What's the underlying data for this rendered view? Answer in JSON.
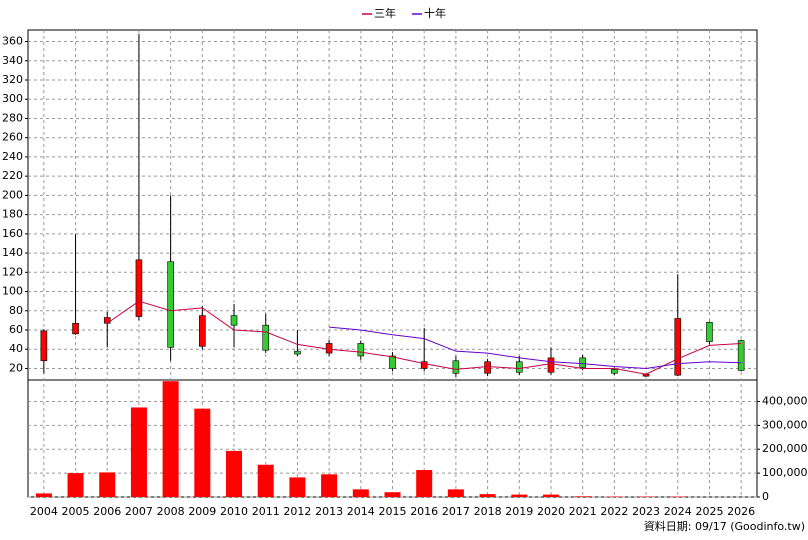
{
  "chart_data": {
    "type": "candlestick",
    "categories": [
      "2004",
      "2005",
      "2006",
      "2007",
      "2008",
      "2009",
      "2010",
      "2011",
      "2012",
      "2013",
      "2014",
      "2015",
      "2016",
      "2017",
      "2018",
      "2019",
      "2020",
      "2021",
      "2022",
      "2023",
      "2024",
      "2025",
      "2026"
    ],
    "open": [
      28,
      56,
      67,
      74,
      131,
      43,
      75,
      65,
      38,
      36,
      46,
      33,
      20,
      28,
      15,
      27,
      16,
      31,
      19,
      12,
      13,
      68,
      49
    ],
    "high": [
      61,
      160,
      79,
      368,
      200,
      85,
      87,
      77,
      60,
      50,
      49,
      37,
      62,
      33,
      30,
      33,
      42,
      34,
      21,
      14,
      118,
      69,
      50
    ],
    "low": [
      15,
      55,
      42,
      70,
      28,
      40,
      42,
      36,
      33,
      33,
      29,
      17,
      17,
      11,
      12,
      13,
      13,
      18,
      13,
      11,
      12,
      45,
      17
    ],
    "close": [
      59,
      67,
      73,
      133,
      42,
      75,
      65,
      39,
      35,
      46,
      33,
      20,
      27,
      15,
      27,
      16,
      31,
      21,
      15,
      14,
      72,
      48,
      18
    ],
    "up_color": "#ff0000",
    "down_color": "#33cc33",
    "series": [
      {
        "name": "三年",
        "color": "#cc0044",
        "values": [
          null,
          null,
          67,
          90,
          80,
          83,
          60,
          58,
          45,
          40,
          37,
          32,
          25,
          19,
          22,
          20,
          25,
          20,
          20,
          14,
          30,
          44,
          46
        ]
      },
      {
        "name": "十年",
        "color": "#6600cc",
        "values": [
          null,
          null,
          null,
          null,
          null,
          null,
          null,
          null,
          null,
          63,
          60,
          55,
          51,
          38,
          36,
          31,
          27,
          25,
          22,
          20,
          25,
          27,
          26
        ]
      }
    ],
    "ylim": [
      8,
      372
    ],
    "yticks": [
      20,
      40,
      60,
      80,
      100,
      120,
      140,
      160,
      180,
      200,
      220,
      240,
      260,
      280,
      300,
      320,
      340,
      360
    ],
    "volume": {
      "color": "#ff0000",
      "values": [
        15000,
        100000,
        103000,
        375000,
        485000,
        370000,
        193000,
        135000,
        82000,
        95000,
        32000,
        20000,
        113000,
        32000,
        12000,
        10000,
        10000,
        3000,
        2000,
        2000,
        2000,
        0,
        0
      ],
      "ylim": [
        0,
        490000
      ],
      "yticks": [
        0,
        {
          "value": 100000,
          "label": "100,000"
        },
        {
          "value": 200000,
          "label": "200,000"
        },
        {
          "value": 300000,
          "label": "300,000"
        },
        {
          "value": 400000,
          "label": "400,000"
        }
      ]
    },
    "grid": true,
    "footer": "資料日期: 09/17  (Goodinfo.tw)"
  }
}
